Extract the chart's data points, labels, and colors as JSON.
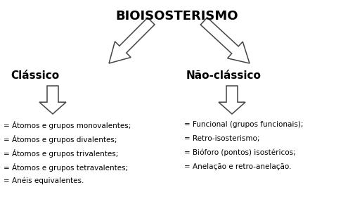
{
  "title": "BIOISOSTERISMO",
  "left_heading": "Clássico",
  "right_heading": "Não-clássico",
  "left_items": [
    "= Átomos e grupos monovalentes;",
    "= Átomos e grupos divalentes;",
    "= Átomos e grupos trivalentes;",
    "= Átomos e grupos tetravalentes;",
    "= Anéis equivalentes."
  ],
  "right_items": [
    "= Funcional (grupos funcionais);",
    "= Retro-isosterismo;",
    "= Bióforo (pontos) isostéricos;",
    "= Anelação e retro-anelação."
  ],
  "bg_color": "#ffffff",
  "text_color": "#000000",
  "arrow_fill": "#ffffff",
  "arrow_edge_color": "#444444",
  "title_fontsize": 13,
  "heading_fontsize": 11,
  "item_fontsize": 7.5
}
